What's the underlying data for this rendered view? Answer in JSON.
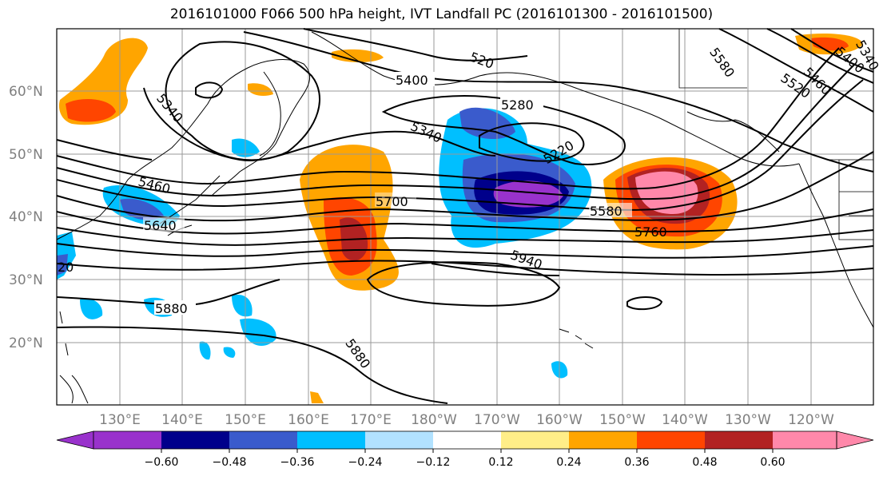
{
  "title": "2016101000 F066 500 hPa height, IVT Landfall PC (2016101300 - 2016101500)",
  "lat_labels": [
    "60°N",
    "50°N",
    "40°N",
    "30°N",
    "20°N"
  ],
  "lon_labels": [
    "130°E",
    "140°E",
    "150°E",
    "160°E",
    "170°E",
    "180°W",
    "170°W",
    "160°W",
    "150°W",
    "140°W",
    "130°W",
    "120°W"
  ],
  "contour_labels": [
    "5400",
    "5340",
    "5280",
    "5220",
    "5340",
    "5460",
    "5640",
    "5700",
    "5580",
    "5760",
    "5940",
    "5880",
    "5880",
    "5580",
    "5460",
    "5400",
    "5520",
    "5340",
    "20",
    "520"
  ],
  "colorbar": {
    "ticks": [
      "−0.60",
      "−0.48",
      "−0.36",
      "−0.24",
      "−0.12",
      "0.12",
      "0.24",
      "0.36",
      "0.48",
      "0.60"
    ],
    "colors": [
      "#9932cc",
      "#00008b",
      "#3a5bcc",
      "#00bfff",
      "#b2e2ff",
      "#ffffff",
      "#ffee88",
      "#ffa500",
      "#ff4500",
      "#b22222",
      "#ff88aa",
      "#ff88aa"
    ]
  }
}
